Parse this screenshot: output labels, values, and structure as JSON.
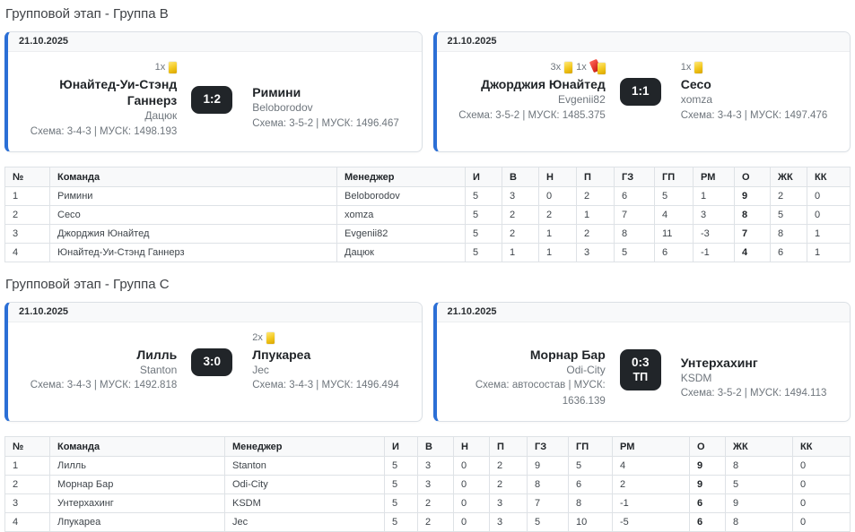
{
  "colors": {
    "accent_blue": "#2b6fd6",
    "score_badge_bg": "#212529",
    "yellow_card": "#f2c71d",
    "red_card": "#e03226",
    "table_header_bg": "#f8f9fa"
  },
  "icons": {
    "yellow-card-icon": "small yellow rectangle (booking card)",
    "second-yellow-card-icon": "red card with overlapping yellow card"
  },
  "groups": [
    {
      "title": "Групповой этап - Группа B",
      "matches": [
        {
          "date": "21.10.2025",
          "score": "1:2",
          "note": "",
          "home": {
            "name": "Юнайтед-Уи-Стэнд Ганнерз",
            "manager": "Дацюк",
            "meta": "Схема: 3-4-3 | МУСК: 1498.193",
            "cards": [
              {
                "count": "1x",
                "type": "yellow"
              }
            ]
          },
          "away": {
            "name": "Римини",
            "manager": "Beloborodov",
            "meta": "Схема: 3-5-2 | МУСК: 1496.467",
            "cards": []
          }
        },
        {
          "date": "21.10.2025",
          "score": "1:1",
          "note": "",
          "home": {
            "name": "Джорджия Юнайтед",
            "manager": "Evgenii82",
            "meta": "Схема: 3-5-2 | МУСК: 1485.375",
            "cards": [
              {
                "count": "3x",
                "type": "yellow"
              },
              {
                "count": "1x",
                "type": "second-yellow"
              }
            ]
          },
          "away": {
            "name": "Сесо",
            "manager": "xomza",
            "meta": "Схема: 3-4-3 | МУСК: 1497.476",
            "cards": [
              {
                "count": "1x",
                "type": "yellow"
              }
            ]
          }
        }
      ],
      "table": {
        "headers": [
          "№",
          "Команда",
          "Менеджер",
          "И",
          "В",
          "Н",
          "П",
          "ГЗ",
          "ГП",
          "РМ",
          "О",
          "ЖК",
          "КК"
        ],
        "rows": [
          [
            "1",
            "Римини",
            "Beloborodov",
            "5",
            "3",
            "0",
            "2",
            "6",
            "5",
            "1",
            "9",
            "2",
            "0"
          ],
          [
            "2",
            "Сесо",
            "xomza",
            "5",
            "2",
            "2",
            "1",
            "7",
            "4",
            "3",
            "8",
            "5",
            "0"
          ],
          [
            "3",
            "Джорджия Юнайтед",
            "Evgenii82",
            "5",
            "2",
            "1",
            "2",
            "8",
            "11",
            "-3",
            "7",
            "8",
            "1"
          ],
          [
            "4",
            "Юнайтед-Уи-Стэнд Ганнерз",
            "Дацюк",
            "5",
            "1",
            "1",
            "3",
            "5",
            "6",
            "-1",
            "4",
            "6",
            "1"
          ]
        ]
      }
    },
    {
      "title": "Групповой этап - Группа C",
      "matches": [
        {
          "date": "21.10.2025",
          "score": "3:0",
          "note": "",
          "home": {
            "name": "Лилль",
            "manager": "Stanton",
            "meta": "Схема: 3-4-3 | МУСК: 1492.818",
            "cards": []
          },
          "away": {
            "name": "Лпукареа",
            "manager": "Jec",
            "meta": "Схема: 3-4-3 | МУСК: 1496.494",
            "cards": [
              {
                "count": "2x",
                "type": "yellow"
              }
            ]
          }
        },
        {
          "date": "21.10.2025",
          "score": "0:3",
          "note": "ТП",
          "home": {
            "name": "Морнар Бар",
            "manager": "Odi-City",
            "meta": "Схема: автосостав | МУСК: 1636.139",
            "cards": []
          },
          "away": {
            "name": "Унтерхахинг",
            "manager": "KSDM",
            "meta": "Схема: 3-5-2 | МУСК: 1494.113",
            "cards": []
          }
        }
      ],
      "table": {
        "headers": [
          "№",
          "Команда",
          "Менеджер",
          "И",
          "В",
          "Н",
          "П",
          "ГЗ",
          "ГП",
          "РМ",
          "О",
          "ЖК",
          "КК"
        ],
        "rows": [
          [
            "1",
            "Лилль",
            "Stanton",
            "5",
            "3",
            "0",
            "2",
            "9",
            "5",
            "4",
            "9",
            "8",
            "0"
          ],
          [
            "2",
            "Морнар Бар",
            "Odi-City",
            "5",
            "3",
            "0",
            "2",
            "8",
            "6",
            "2",
            "9",
            "5",
            "0"
          ],
          [
            "3",
            "Унтерхахинг",
            "KSDM",
            "5",
            "2",
            "0",
            "3",
            "7",
            "8",
            "-1",
            "6",
            "9",
            "0"
          ],
          [
            "4",
            "Лпукареа",
            "Jec",
            "5",
            "2",
            "0",
            "3",
            "5",
            "10",
            "-5",
            "6",
            "8",
            "0"
          ]
        ]
      }
    }
  ]
}
